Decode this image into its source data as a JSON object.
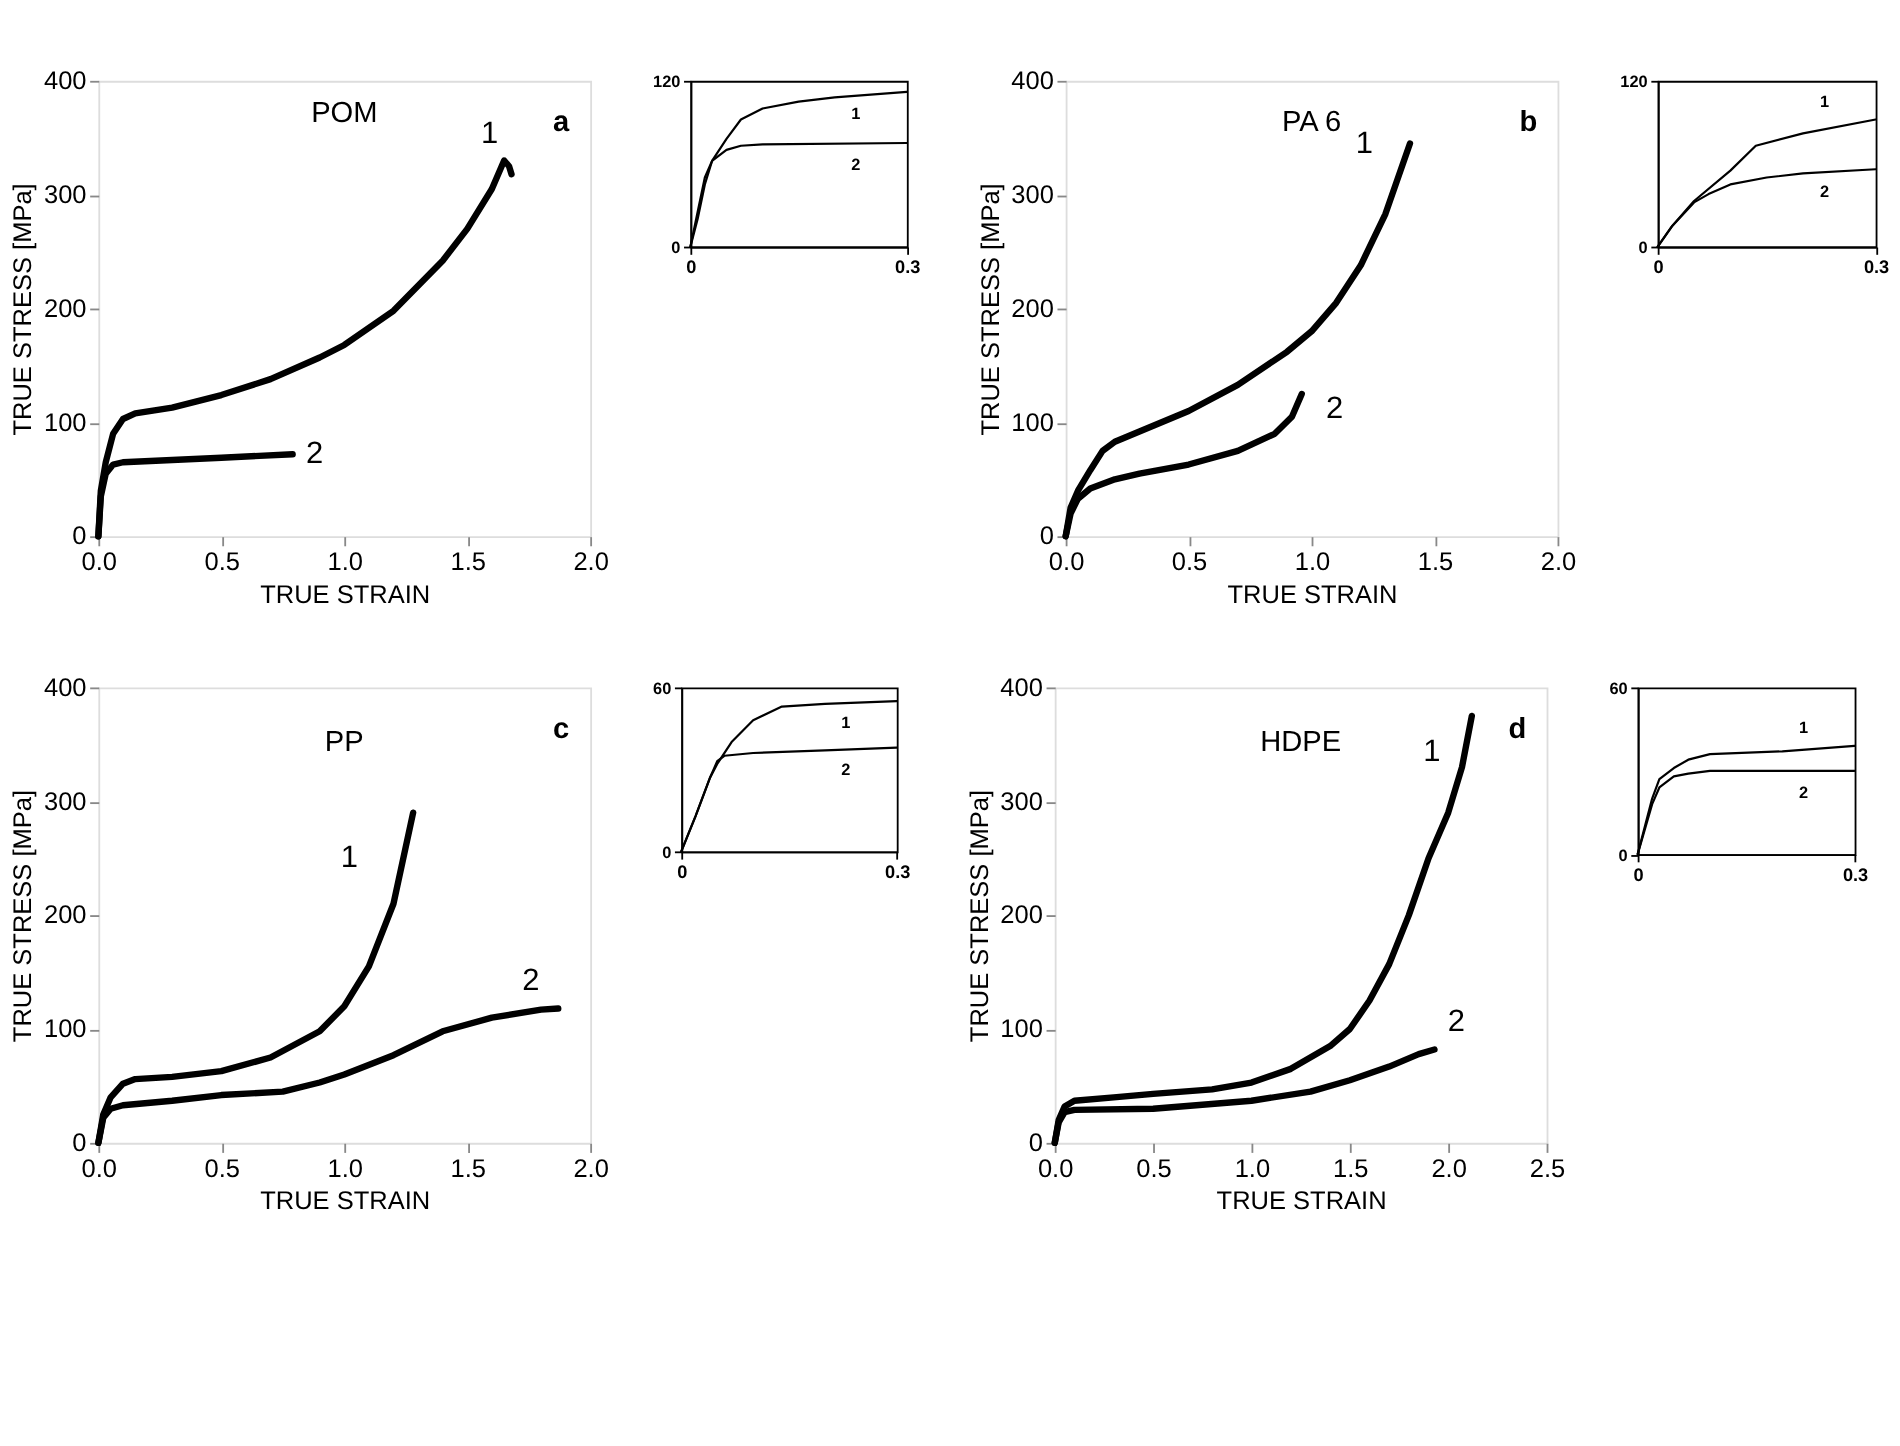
{
  "chart_data": [
    {
      "type": "line",
      "title": "POM",
      "xlabel": "TRUE STRAIN",
      "ylabel": "TRUE STRESS [MPa]",
      "annotations": [
        "a"
      ],
      "xlim": [
        0,
        2
      ],
      "ylim": [
        0,
        400
      ],
      "xticks": [
        {
          "value": 0,
          "label": "0.0"
        },
        {
          "value": 0.5,
          "label": "0.5"
        },
        {
          "value": 1,
          "label": "1.0"
        },
        {
          "value": 1.5,
          "label": "1.5"
        },
        {
          "value": 2,
          "label": "2.0"
        }
      ],
      "yticks": [
        0,
        100,
        200,
        300,
        400
      ],
      "series": [
        {
          "name": "1",
          "color": "#000000",
          "x": [
            0,
            0.01,
            0.03,
            0.06,
            0.1,
            0.15,
            0.3,
            0.5,
            0.7,
            0.9,
            1.0,
            1.2,
            1.4,
            1.5,
            1.6,
            1.65,
            1.67,
            1.68
          ],
          "values": [
            0,
            40,
            65,
            90,
            103,
            108,
            113,
            124,
            138,
            157,
            168,
            198,
            242,
            270,
            305,
            330,
            325,
            318
          ]
        },
        {
          "name": "2",
          "color": "#000000",
          "x": [
            0,
            0.01,
            0.03,
            0.06,
            0.1,
            0.3,
            0.5,
            0.79
          ],
          "values": [
            0,
            35,
            55,
            63,
            65,
            67,
            69,
            72
          ]
        }
      ]
    },
    {
      "type": "line",
      "xlim": [
        0,
        0.3
      ],
      "ylim": [
        0,
        120
      ],
      "xticks": [
        0,
        0.3
      ],
      "yticks": [
        0,
        120
      ],
      "series": [
        {
          "name": "1",
          "color": "#000000",
          "x": [
            0,
            0.01,
            0.02,
            0.03,
            0.05,
            0.07,
            0.1,
            0.15,
            0.2,
            0.3
          ],
          "values": [
            0,
            20,
            45,
            62,
            78,
            92,
            100,
            105,
            108,
            112
          ]
        },
        {
          "name": "2",
          "color": "#000000",
          "x": [
            0,
            0.01,
            0.02,
            0.03,
            0.05,
            0.07,
            0.1,
            0.3
          ],
          "values": [
            0,
            25,
            50,
            62,
            70,
            73,
            74,
            75
          ]
        }
      ]
    },
    {
      "type": "line",
      "title": "PA 6",
      "xlabel": "TRUE STRAIN",
      "ylabel": "TRUE STRESS [MPa]",
      "annotations": [
        "b"
      ],
      "xlim": [
        0,
        2
      ],
      "ylim": [
        0,
        400
      ],
      "xticks": [
        {
          "value": 0,
          "label": "0.0"
        },
        {
          "value": 0.5,
          "label": "0.5"
        },
        {
          "value": 1,
          "label": "1.0"
        },
        {
          "value": 1.5,
          "label": "1.5"
        },
        {
          "value": 2,
          "label": "2.0"
        }
      ],
      "yticks": [
        0,
        100,
        200,
        300,
        400
      ],
      "series": [
        {
          "name": "1",
          "color": "#000000",
          "x": [
            0,
            0.02,
            0.05,
            0.1,
            0.15,
            0.2,
            0.3,
            0.5,
            0.7,
            0.9,
            1.0,
            1.1,
            1.2,
            1.3,
            1.4
          ],
          "values": [
            0,
            25,
            40,
            58,
            75,
            83,
            92,
            110,
            133,
            162,
            180,
            205,
            238,
            283,
            345
          ]
        },
        {
          "name": "2",
          "color": "#000000",
          "x": [
            0,
            0.02,
            0.05,
            0.1,
            0.2,
            0.3,
            0.5,
            0.7,
            0.85,
            0.92,
            0.96
          ],
          "values": [
            0,
            20,
            33,
            42,
            50,
            55,
            63,
            75,
            90,
            105,
            125
          ]
        }
      ]
    },
    {
      "type": "line",
      "xlim": [
        0,
        0.3
      ],
      "ylim": [
        0,
        120
      ],
      "xticks": [
        0,
        0.3
      ],
      "yticks": [
        0,
        120
      ],
      "series": [
        {
          "name": "1",
          "color": "#000000",
          "x": [
            0,
            0.02,
            0.05,
            0.1,
            0.135,
            0.2,
            0.3
          ],
          "values": [
            0,
            15,
            33,
            55,
            73,
            82,
            92
          ]
        },
        {
          "name": "2",
          "color": "#000000",
          "x": [
            0,
            0.02,
            0.05,
            0.07,
            0.1,
            0.15,
            0.2,
            0.3
          ],
          "values": [
            0,
            15,
            32,
            38,
            45,
            50,
            53,
            56
          ]
        }
      ]
    },
    {
      "type": "line",
      "title": "PP",
      "xlabel": "TRUE STRAIN",
      "ylabel": "TRUE STRESS [MPa]",
      "annotations": [
        "c"
      ],
      "xlim": [
        0,
        2
      ],
      "ylim": [
        0,
        400
      ],
      "xticks": [
        {
          "value": 0,
          "label": "0.0"
        },
        {
          "value": 0.5,
          "label": "0.5"
        },
        {
          "value": 1,
          "label": "1.0"
        },
        {
          "value": 1.5,
          "label": "1.5"
        },
        {
          "value": 2,
          "label": "2.0"
        }
      ],
      "yticks": [
        0,
        100,
        200,
        300,
        400
      ],
      "series": [
        {
          "name": "1",
          "color": "#000000",
          "x": [
            0,
            0.02,
            0.05,
            0.1,
            0.15,
            0.3,
            0.5,
            0.7,
            0.9,
            1.0,
            1.1,
            1.2,
            1.28
          ],
          "values": [
            0,
            25,
            40,
            52,
            56,
            58,
            63,
            75,
            98,
            120,
            155,
            210,
            290
          ]
        },
        {
          "name": "2",
          "color": "#000000",
          "x": [
            0,
            0.02,
            0.05,
            0.1,
            0.3,
            0.5,
            0.75,
            0.9,
            1.0,
            1.2,
            1.4,
            1.6,
            1.8,
            1.87
          ],
          "values": [
            0,
            22,
            30,
            33,
            37,
            42,
            45,
            53,
            60,
            77,
            98,
            110,
            117,
            118
          ]
        }
      ]
    },
    {
      "type": "line",
      "xlim": [
        0,
        0.3
      ],
      "ylim": [
        0,
        60
      ],
      "xticks": [
        0,
        0.3
      ],
      "yticks": [
        0,
        60
      ],
      "series": [
        {
          "name": "1",
          "color": "#000000",
          "x": [
            0,
            0.02,
            0.04,
            0.05,
            0.07,
            0.1,
            0.14,
            0.2,
            0.3
          ],
          "values": [
            0,
            13,
            27,
            32,
            40,
            48,
            53,
            54,
            55
          ]
        },
        {
          "name": "2",
          "color": "#000000",
          "x": [
            0,
            0.02,
            0.04,
            0.05,
            0.06,
            0.1,
            0.2,
            0.3
          ],
          "values": [
            0,
            13,
            27,
            33,
            35,
            36,
            37,
            38
          ]
        }
      ]
    },
    {
      "type": "line",
      "title": "HDPE",
      "xlabel": "TRUE STRAIN",
      "ylabel": "TRUE STRESS [MPa]",
      "annotations": [
        "d"
      ],
      "xlim": [
        0,
        2.5
      ],
      "ylim": [
        0,
        400
      ],
      "xticks": [
        {
          "value": 0,
          "label": "0.0"
        },
        {
          "value": 0.5,
          "label": "0.5"
        },
        {
          "value": 1,
          "label": "1.0"
        },
        {
          "value": 1.5,
          "label": "1.5"
        },
        {
          "value": 2,
          "label": "2.0"
        },
        {
          "value": 2.5,
          "label": "2.5"
        }
      ],
      "yticks": [
        0,
        100,
        200,
        300,
        400
      ],
      "series": [
        {
          "name": "1",
          "color": "#000000",
          "x": [
            0,
            0.02,
            0.05,
            0.1,
            0.3,
            0.5,
            0.8,
            1.0,
            1.2,
            1.4,
            1.5,
            1.6,
            1.7,
            1.8,
            1.9,
            2.0,
            2.07,
            2.12
          ],
          "values": [
            0,
            20,
            32,
            37,
            40,
            43,
            47,
            53,
            65,
            85,
            100,
            125,
            157,
            200,
            250,
            290,
            330,
            375
          ]
        },
        {
          "name": "2",
          "color": "#000000",
          "x": [
            0,
            0.02,
            0.05,
            0.1,
            0.5,
            1.0,
            1.3,
            1.5,
            1.7,
            1.85,
            1.93
          ],
          "values": [
            0,
            18,
            27,
            29,
            30,
            37,
            45,
            55,
            67,
            78,
            82
          ]
        }
      ]
    },
    {
      "type": "line",
      "xlim": [
        0,
        0.3
      ],
      "ylim": [
        0,
        60
      ],
      "xticks": [
        0,
        0.3
      ],
      "yticks": [
        0,
        60
      ],
      "series": [
        {
          "name": "1",
          "color": "#000000",
          "x": [
            0,
            0.01,
            0.02,
            0.03,
            0.05,
            0.07,
            0.1,
            0.2,
            0.3
          ],
          "values": [
            0,
            10,
            20,
            27,
            31,
            34,
            36,
            37,
            39
          ]
        },
        {
          "name": "2",
          "color": "#000000",
          "x": [
            0,
            0.02,
            0.03,
            0.05,
            0.07,
            0.1,
            0.3
          ],
          "values": [
            0,
            18,
            24,
            28,
            29,
            30,
            30
          ]
        }
      ]
    }
  ]
}
